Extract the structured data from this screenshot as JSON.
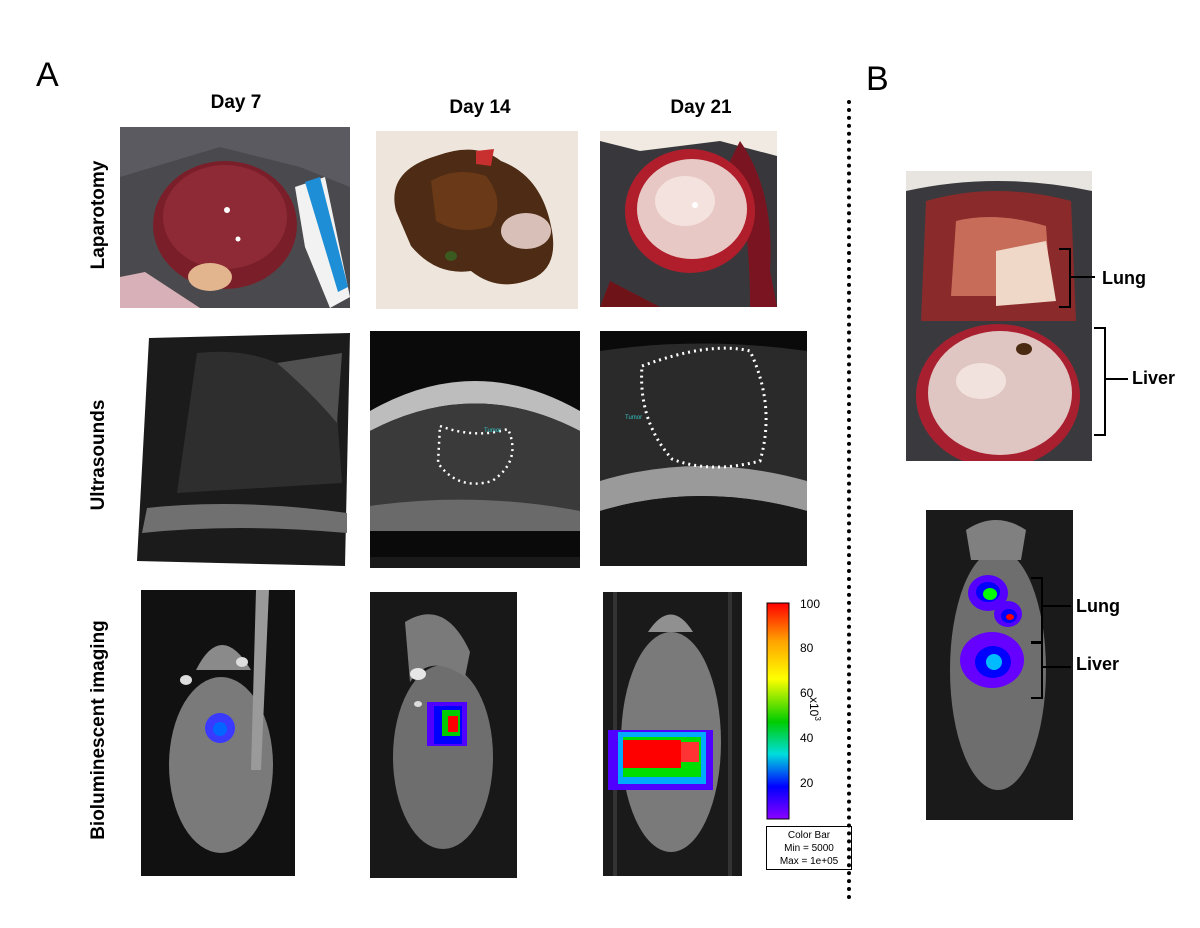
{
  "panels": {
    "a": "A",
    "b": "B"
  },
  "days": [
    "Day 7",
    "Day 14",
    "Day 21"
  ],
  "rows": [
    "Laparotomy",
    "Ultrasounds",
    "Bioluminescent imaging"
  ],
  "ultrasound_small_label": "Tumor",
  "colorbar": {
    "ticks": [
      "100",
      "80",
      "60",
      "40",
      "20"
    ],
    "unit": "x10",
    "unit_exp": "3",
    "legend_title": "Color Bar",
    "legend_min": "Min = 5000",
    "legend_max": "Max = 1e+05",
    "colors": [
      "#ff0000",
      "#ffa500",
      "#ffff00",
      "#00cc00",
      "#00dddd",
      "#0000ff",
      "#8a00ff"
    ]
  },
  "panel_b": {
    "lung_label": "Lung",
    "liver_label": "Liver",
    "lung_label_2": "Lung",
    "liver_label_2": "Liver"
  }
}
